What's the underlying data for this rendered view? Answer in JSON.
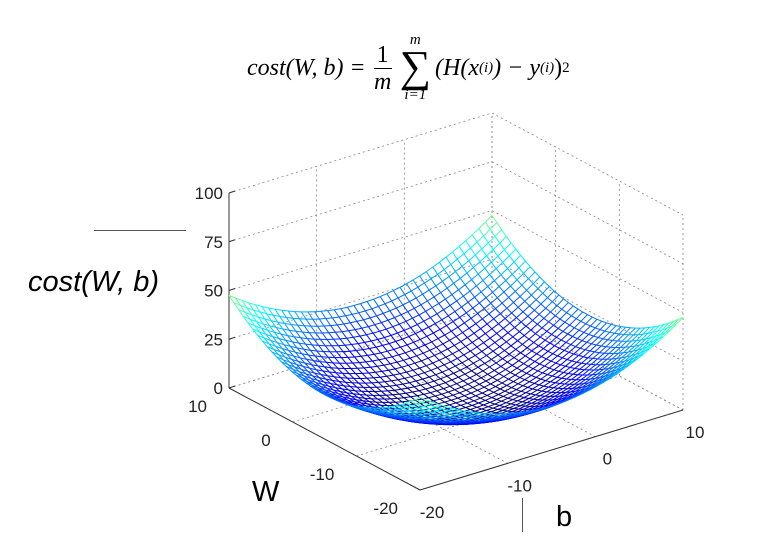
{
  "formula": {
    "lhs": "cost(W, b) =",
    "frac_num": "1",
    "frac_den": "m",
    "sum_top": "m",
    "sum_symbol": "∑",
    "sum_bottom": "i=1",
    "body": "(H(x",
    "sup1": "(i)",
    "mid": ") − y",
    "sup2": "(i)",
    "tail": ")",
    "exp": "2"
  },
  "chart_data": {
    "type": "surface",
    "function": "cost = 0.5*(W^2 + b^2)/2 ; bowl-shaped quadratic in W and b",
    "title": "cost(W, b) = 1/m Σ (H(x(i)) − y(i))^2",
    "z_label": "cost(W, b)",
    "x_label": "W",
    "y_label": "b",
    "x_ticks": [
      "10",
      "0",
      "-10",
      "-20"
    ],
    "y_ticks": [
      "-20",
      "-10",
      "0",
      "10"
    ],
    "z_ticks": [
      "0",
      "25",
      "50",
      "75",
      "100"
    ],
    "w_range": [
      -20,
      10
    ],
    "b_range": [
      -20,
      10
    ],
    "z_range": [
      0,
      100
    ],
    "grid": "on",
    "colormap": "jet"
  },
  "labels": {
    "cost_axis": "cost(W, b)",
    "w_axis": "W",
    "b_axis": "b"
  }
}
